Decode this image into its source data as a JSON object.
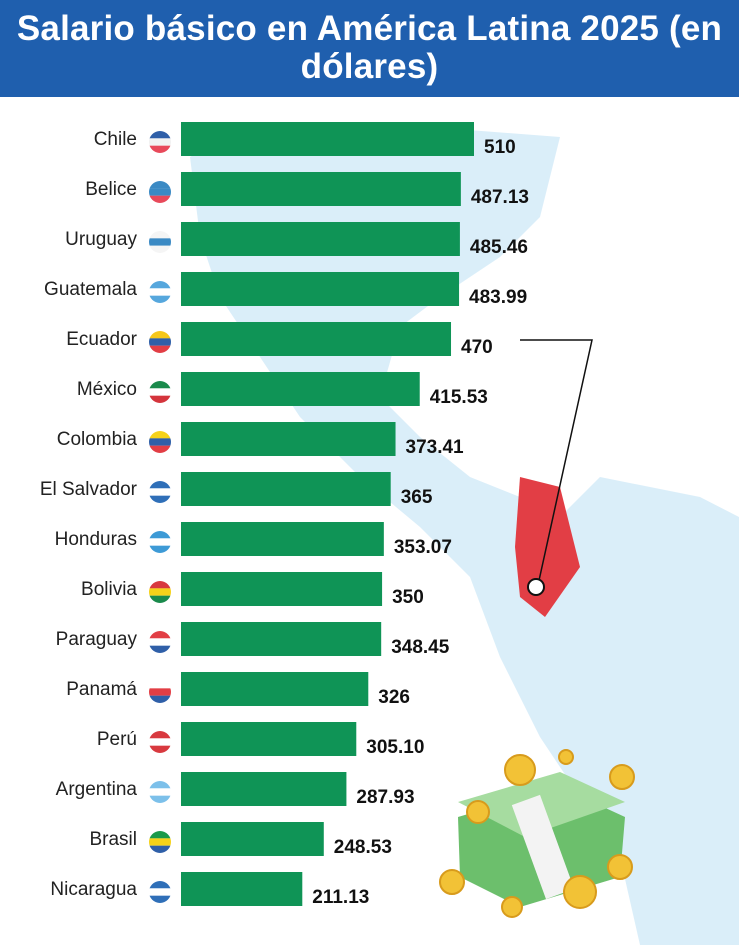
{
  "chart_data": {
    "type": "bar",
    "orientation": "horizontal",
    "title": "Salario básico en América Latina 2025 (en dólares)",
    "categories": [
      "Chile",
      "Belice",
      "Uruguay",
      "Guatemala",
      "Ecuador",
      "México",
      "Colombia",
      "El Salvador",
      "Honduras",
      "Bolivia",
      "Paraguay",
      "Panamá",
      "Perú",
      "Argentina",
      "Brasil",
      "Nicaragua"
    ],
    "values": [
      510,
      487.13,
      485.46,
      483.99,
      470,
      415.53,
      373.41,
      365,
      353.07,
      350,
      348.45,
      326,
      305.1,
      287.93,
      248.53,
      211.13
    ],
    "labels": [
      "510",
      "487.13",
      "485.46",
      "483.99",
      "470",
      "415.53",
      "373.41",
      "365",
      "353.07",
      "350",
      "348.45",
      "326",
      "305.10",
      "287.93",
      "248.53",
      "211.13"
    ],
    "xlim": [
      0,
      510
    ],
    "highlight": "Ecuador",
    "bar_color": "#0f9456",
    "map_color": "#d3ebf8",
    "highlight_color": "#e23e45"
  },
  "flags": [
    [
      "#2f5fa8",
      "#f2f2f2",
      "#e8495a"
    ],
    [
      "#3b8ac4",
      "#3b8ac4",
      "#e8495a"
    ],
    [
      "#f5f5f5",
      "#3b8ac4",
      "#f5f5f5"
    ],
    [
      "#56a7dd",
      "#ffffff",
      "#56a7dd"
    ],
    [
      "#f5c71a",
      "#2f5fa8",
      "#e23e45"
    ],
    [
      "#1a8a4c",
      "#ffffff",
      "#d4343c"
    ],
    [
      "#f5d21a",
      "#2f5fa8",
      "#e23e45"
    ],
    [
      "#2f6fb8",
      "#ffffff",
      "#2f6fb8"
    ],
    [
      "#3d9ad6",
      "#ffffff",
      "#3d9ad6"
    ],
    [
      "#d8393f",
      "#f5d21a",
      "#1a8a4c"
    ],
    [
      "#e23e45",
      "#ffffff",
      "#2f5fa8"
    ],
    [
      "#ffffff",
      "#e23e45",
      "#2f5fa8"
    ],
    [
      "#d8393f",
      "#ffffff",
      "#d8393f"
    ],
    [
      "#7cc0ea",
      "#ffffff",
      "#7cc0ea"
    ],
    [
      "#1a9a4a",
      "#f5d21a",
      "#2f5fa8"
    ],
    [
      "#2f6fb8",
      "#ffffff",
      "#2f6fb8"
    ]
  ]
}
